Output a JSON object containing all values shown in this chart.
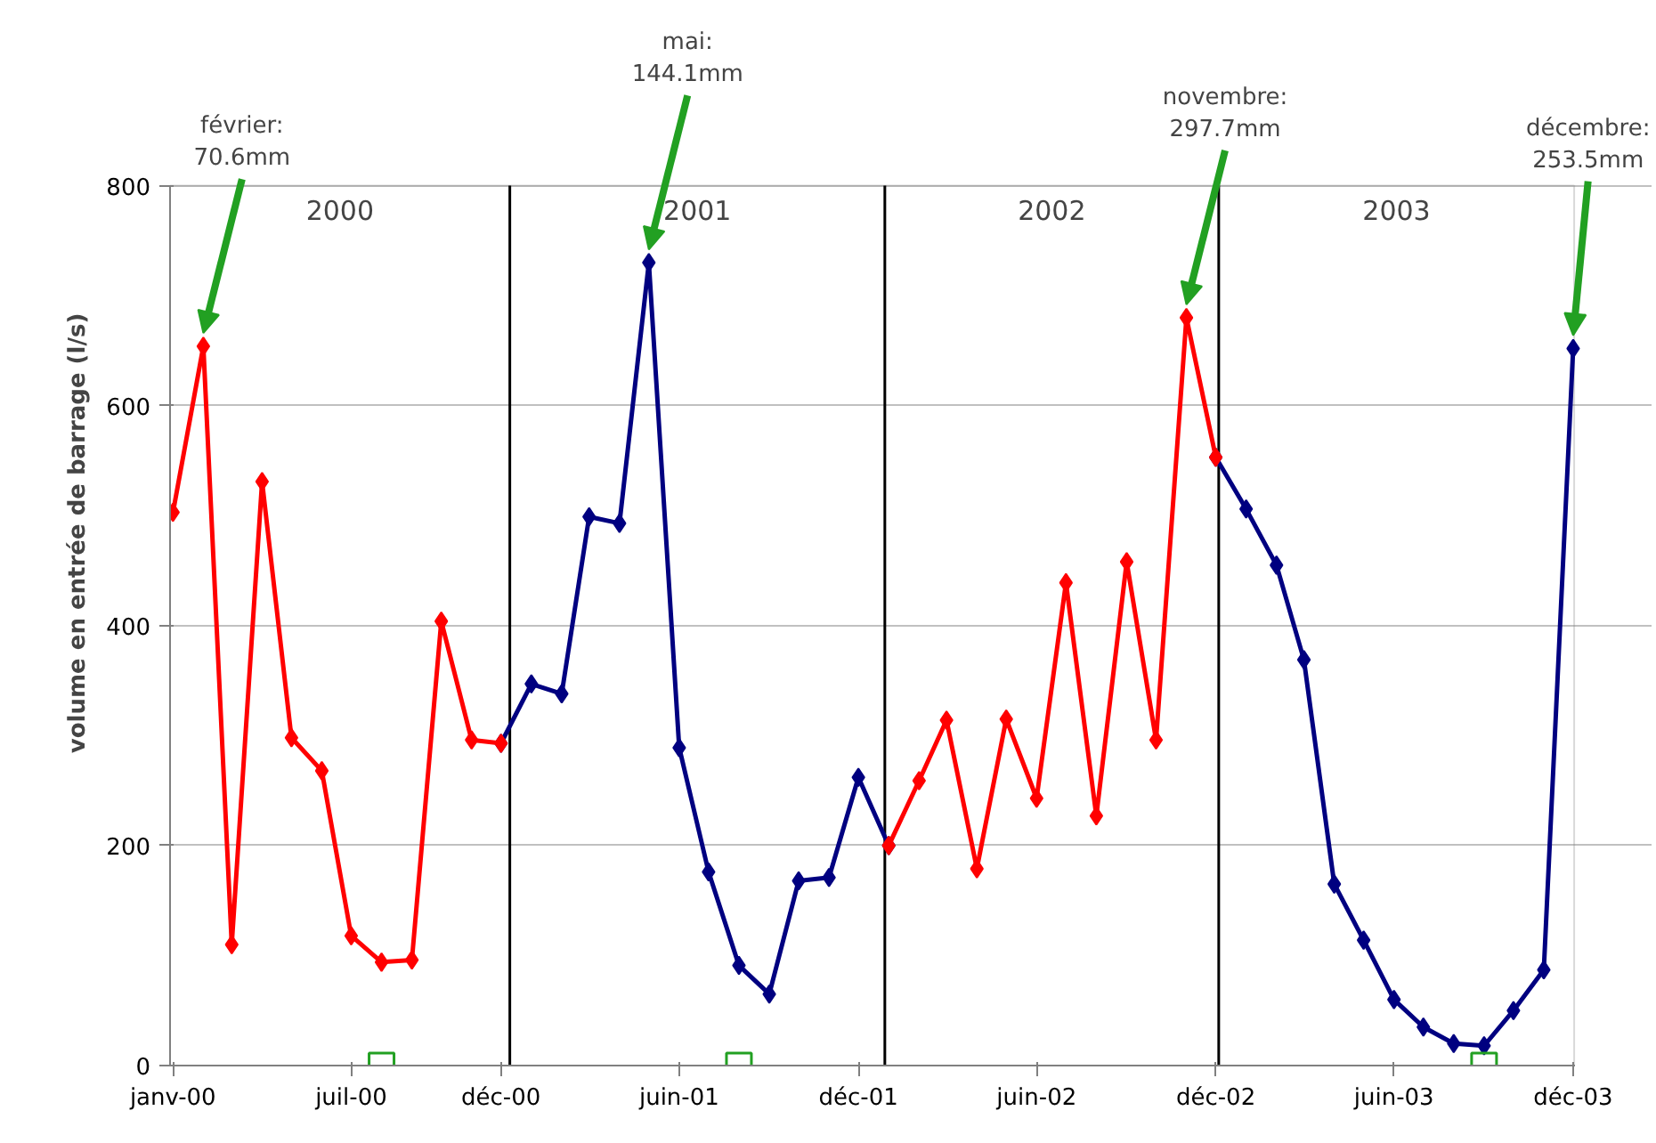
{
  "chart_data": {
    "type": "line",
    "ylabel": "volume en entrée de barrage (l/s)",
    "xlim": [
      "1999-12-29",
      "2003-12-02"
    ],
    "xticks": [
      {
        "value": "2000-01",
        "label": "janv-00"
      },
      {
        "value": "2000-07",
        "label": "juil-00"
      },
      {
        "value": "2000-12",
        "label": "déc-00"
      },
      {
        "value": "2001-06",
        "label": "juin-01"
      },
      {
        "value": "2001-12",
        "label": "déc-01"
      },
      {
        "value": "2002-06",
        "label": "juin-02"
      },
      {
        "value": "2002-12",
        "label": "déc-02"
      },
      {
        "value": "2003-06",
        "label": "juin-03"
      },
      {
        "value": "2003-12",
        "label": "déc-03"
      }
    ],
    "ylim": [
      0,
      800
    ],
    "yticks": [
      0,
      200,
      400,
      600,
      800
    ],
    "grid": "y",
    "marker": "diamond",
    "line_style": "solid",
    "series": [
      {
        "color": "#000080",
        "x": [
          "2000-12",
          "2001-01",
          "2001-02",
          "2001-03",
          "2001-04",
          "2001-05",
          "2001-06",
          "2001-07",
          "2001-08",
          "2001-09",
          "2001-10",
          "2001-11",
          "2001-12",
          "2002-01"
        ],
        "values": [
          293,
          347,
          338,
          499,
          493,
          730,
          289,
          176,
          91,
          65,
          168,
          171,
          262,
          200
        ]
      },
      {
        "color": "#000080",
        "x": [
          "2002-12",
          "2003-01",
          "2003-02",
          "2003-03",
          "2003-04",
          "2003-05",
          "2003-06",
          "2003-07",
          "2003-08",
          "2003-09",
          "2003-10",
          "2003-11",
          "2003-12"
        ],
        "values": [
          553,
          506,
          455,
          369,
          165,
          114,
          60,
          35,
          20,
          18,
          50,
          87,
          652
        ]
      },
      {
        "color": "#ff0000",
        "x": [
          "2000-01",
          "2000-02",
          "2000-03",
          "2000-04",
          "2000-05",
          "2000-06",
          "2000-07",
          "2000-08",
          "2000-09",
          "2000-10",
          "2000-11",
          "2000-12"
        ],
        "values": [
          503,
          654,
          110,
          531,
          298,
          268,
          118,
          94,
          96,
          404,
          296,
          293
        ]
      },
      {
        "color": "#ff0000",
        "x": [
          "2002-01",
          "2002-02",
          "2002-03",
          "2002-04",
          "2002-05",
          "2002-06",
          "2002-07",
          "2002-08",
          "2002-09",
          "2002-10",
          "2002-11",
          "2002-12"
        ],
        "values": [
          200,
          259,
          314,
          179,
          315,
          243,
          439,
          227,
          458,
          296,
          680,
          553
        ]
      },
      {
        "type": "scatter",
        "marker": "square",
        "color": "#22a022",
        "x": [
          "2000-08",
          "2001-08",
          "2003-09"
        ],
        "values": [
          0,
          0,
          0
        ]
      }
    ],
    "ref_lines": [
      {
        "axis": "x",
        "value": "2000-12-10",
        "color": "#000000"
      },
      {
        "axis": "x",
        "value": "2001-12-28",
        "color": "#000000"
      },
      {
        "axis": "x",
        "value": "2002-12-04",
        "color": "#000000"
      }
    ],
    "annotations": [
      "2000",
      "2001",
      "2002",
      "2003",
      {
        "text": "février:\n70.6mm",
        "x": "2000-02",
        "y": 654
      },
      {
        "text": "mai:\n144.1mm",
        "x": "2001-05",
        "y": 730
      },
      {
        "text": "novembre:\n297.7mm",
        "x": "2002-11",
        "y": 680
      },
      {
        "text": "décembre:\n253.5mm",
        "x": "2003-12",
        "y": 652
      }
    ]
  }
}
